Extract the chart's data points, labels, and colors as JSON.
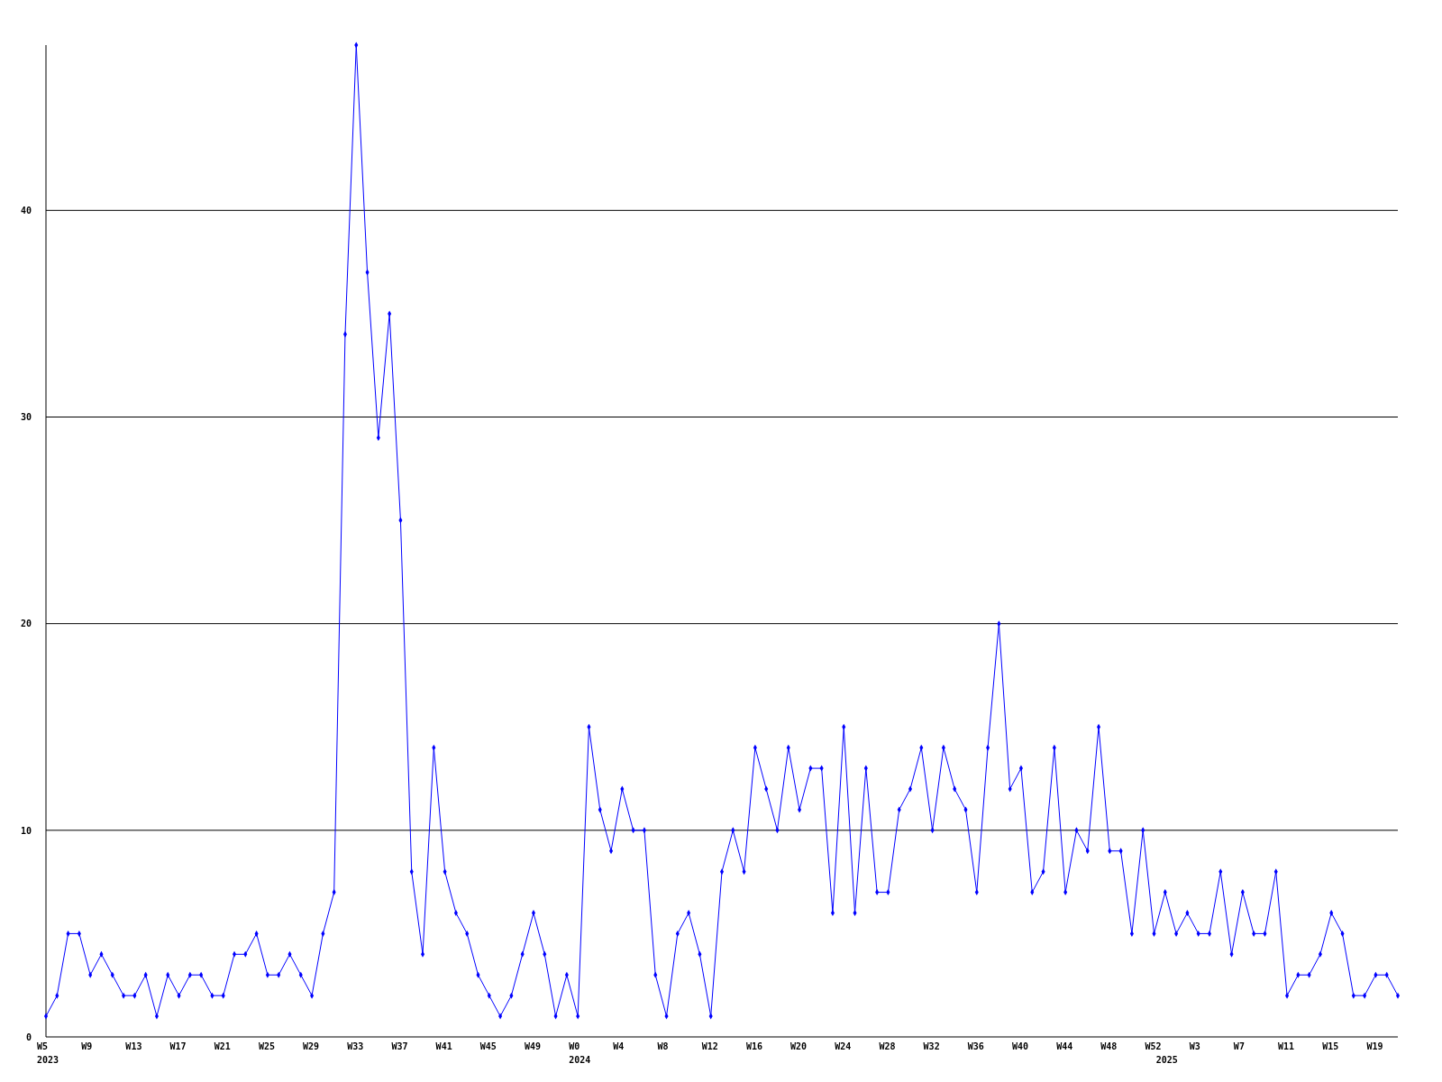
{
  "chart_data": {
    "type": "line",
    "categories": [
      "W5\n2023",
      null,
      null,
      null,
      "W9",
      null,
      null,
      null,
      "W13",
      null,
      null,
      null,
      "W17",
      null,
      null,
      null,
      "W21",
      null,
      null,
      null,
      "W25",
      null,
      null,
      null,
      "W29",
      null,
      null,
      null,
      "W33",
      null,
      null,
      null,
      "W37",
      null,
      null,
      null,
      "W41",
      null,
      null,
      null,
      "W45",
      null,
      null,
      null,
      "W49",
      null,
      null,
      null,
      "W0\n2024",
      null,
      null,
      null,
      "W4",
      null,
      null,
      null,
      "W8",
      null,
      null,
      null,
      "W12",
      null,
      null,
      null,
      "W16",
      null,
      null,
      null,
      "W20",
      null,
      null,
      null,
      "W24",
      null,
      null,
      null,
      "W28",
      null,
      null,
      null,
      "W32",
      null,
      null,
      null,
      "W36",
      null,
      null,
      null,
      "W40",
      null,
      null,
      null,
      "W44",
      null,
      null,
      null,
      "W48",
      null,
      null,
      null,
      "W52",
      "\n2025",
      null,
      null,
      "W3",
      null,
      null,
      null,
      "W7",
      null,
      null,
      null,
      "W11",
      null,
      null,
      null,
      "W15",
      null,
      null,
      null,
      "W19",
      null,
      null
    ],
    "series": [
      {
        "color": "#0000ff",
        "values": [
          1,
          2,
          5,
          5,
          3,
          4,
          3,
          2,
          2,
          3,
          1,
          3,
          2,
          3,
          3,
          2,
          2,
          4,
          4,
          5,
          3,
          3,
          4,
          3,
          2,
          5,
          7,
          34,
          48,
          37,
          29,
          35,
          25,
          8,
          4,
          14,
          8,
          6,
          5,
          3,
          2,
          1,
          2,
          4,
          6,
          4,
          1,
          3,
          1,
          15,
          11,
          9,
          12,
          10,
          10,
          3,
          1,
          5,
          6,
          4,
          1,
          8,
          10,
          8,
          14,
          12,
          10,
          14,
          11,
          13,
          13,
          6,
          15,
          6,
          13,
          7,
          7,
          11,
          12,
          14,
          10,
          14,
          12,
          11,
          7,
          14,
          20,
          12,
          13,
          7,
          8,
          14,
          7,
          10,
          9,
          15,
          9,
          9,
          5,
          10,
          5,
          7,
          5,
          6,
          5,
          5,
          8,
          4,
          7,
          5,
          5,
          8,
          2,
          3,
          3,
          4,
          6,
          5,
          2,
          2,
          3,
          3,
          2
        ]
      }
    ],
    "ylim": [
      0,
      48
    ],
    "yticks": [
      0,
      10,
      20,
      30,
      40
    ],
    "grid": "y",
    "marker": "diamond",
    "line_style": "solid"
  }
}
